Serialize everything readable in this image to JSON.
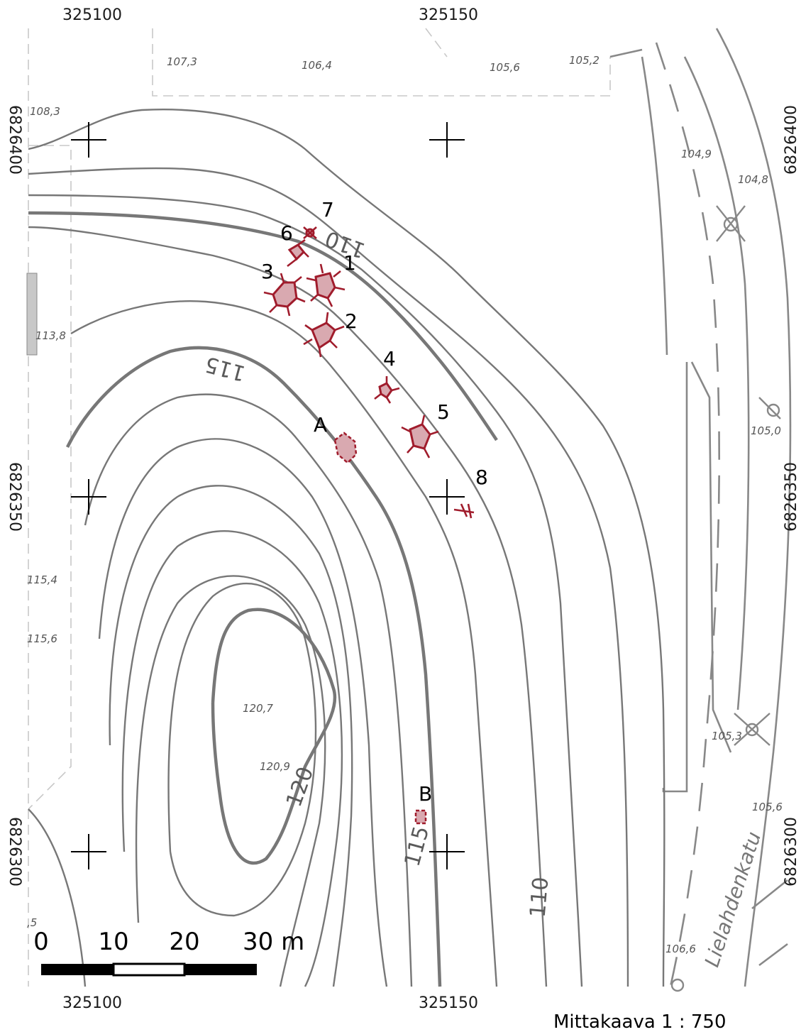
{
  "map": {
    "easting_top": [
      "325100",
      "325150"
    ],
    "easting_bottom": [
      "325100",
      "325150"
    ],
    "northing_left": [
      "6826400",
      "6826350",
      "6826300"
    ],
    "northing_right": [
      "6826400",
      "6826350",
      "6826300"
    ],
    "spot_heights": [
      "107,3",
      "106,4",
      "105,6",
      "105,2",
      "108,3",
      "104,9",
      "104,8",
      "113,8",
      "105,0",
      "115,4",
      "115,6",
      "120,7",
      "120,9",
      "105,3",
      "105,6",
      "106,6",
      ",5"
    ],
    "contour_labels": [
      "110",
      "115",
      "120",
      "115",
      "110"
    ],
    "sites": [
      "1",
      "2",
      "3",
      "4",
      "5",
      "6",
      "7",
      "8",
      "A",
      "B"
    ],
    "street": "Lielahdenkatu",
    "scale_bar_labels": [
      "0",
      "10",
      "20",
      "30 m"
    ],
    "scale_text": "Mittakaava 1 : 750",
    "colors": {
      "feature_fill": "#d9a9b0",
      "feature_stroke": "#a01c2c",
      "contour": "#777777"
    }
  }
}
